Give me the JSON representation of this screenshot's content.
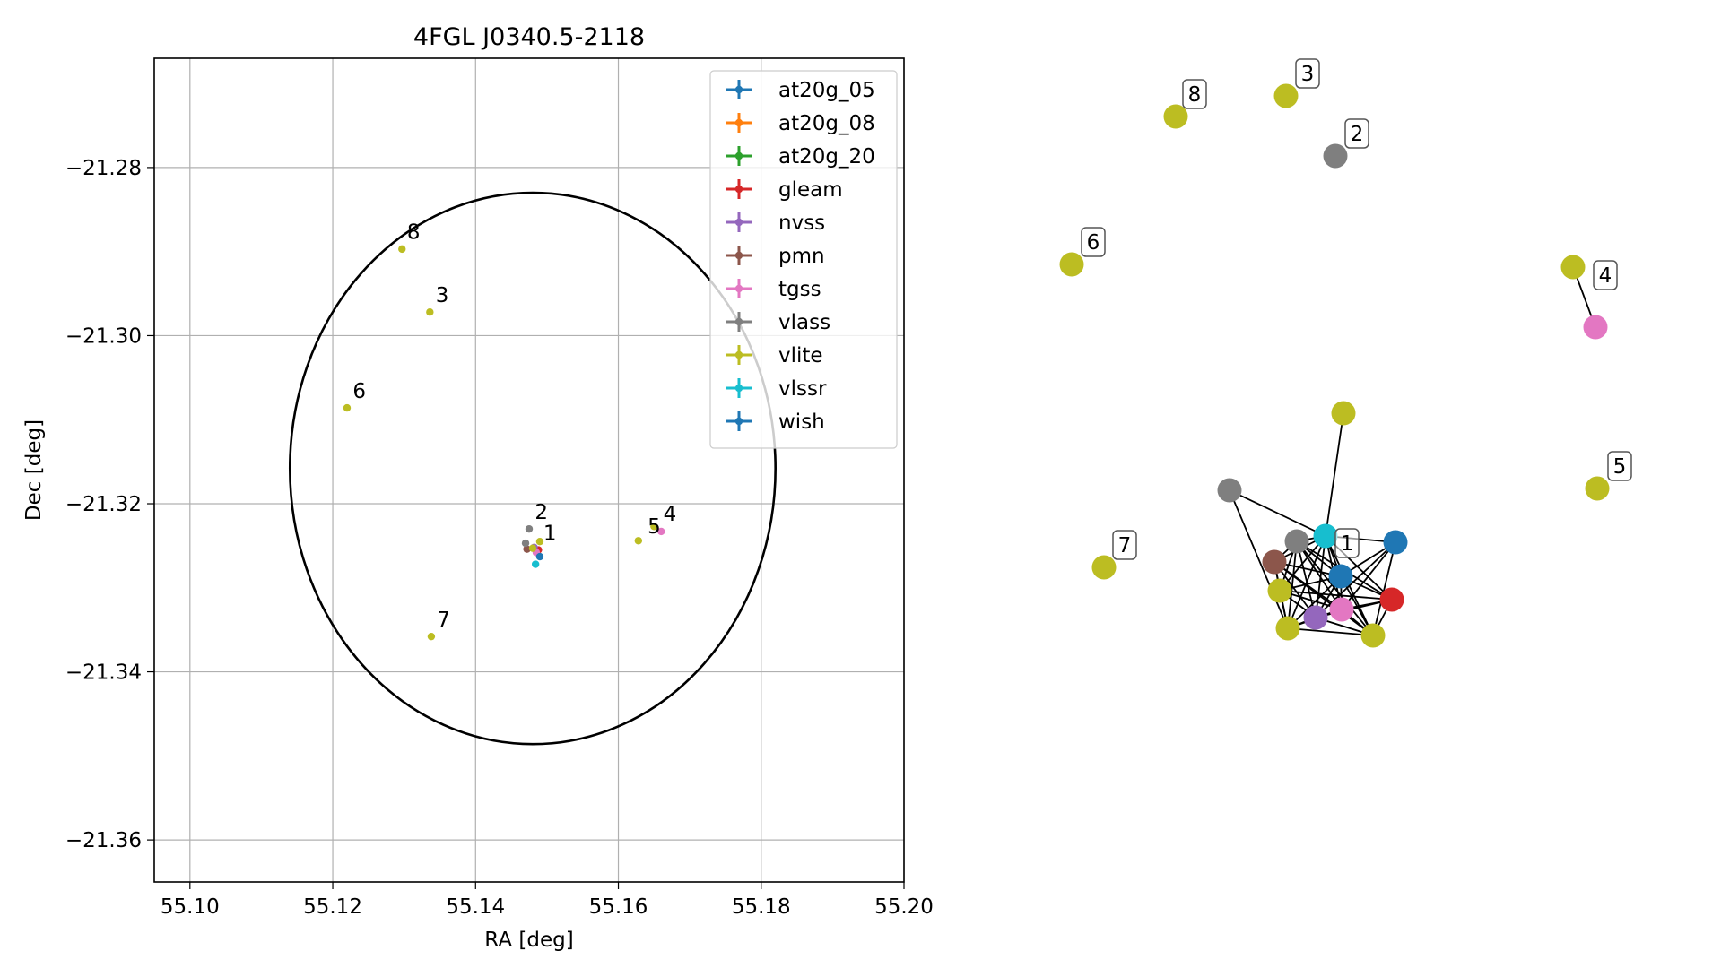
{
  "chart_data": [
    {
      "type": "scatter",
      "title": "4FGL J0340.5-2118",
      "xlabel": "RA [deg]",
      "ylabel": "Dec [deg]",
      "xlim": [
        55.095,
        55.2
      ],
      "ylim": [
        -21.365,
        -21.267
      ],
      "grid": true,
      "xticks": [
        55.1,
        55.12,
        55.14,
        55.16,
        55.18,
        55.2
      ],
      "xtick_labels": [
        "55.10",
        "55.12",
        "55.14",
        "55.16",
        "55.18",
        "55.20"
      ],
      "yticks": [
        -21.28,
        -21.3,
        -21.32,
        -21.34,
        -21.36
      ],
      "ytick_labels": [
        "−21.28",
        "−21.30",
        "−21.32",
        "−21.34",
        "−21.36"
      ],
      "legend_position": "top-right",
      "ellipse": {
        "center": [
          55.148,
          -21.3158
        ],
        "semi_axis_ra": 0.034,
        "semi_axis_dec": 0.0328,
        "color": "#000000"
      },
      "series": [
        {
          "name": "at20g_05",
          "color": "#1f77b4",
          "points": []
        },
        {
          "name": "at20g_08",
          "color": "#ff7f0e",
          "points": []
        },
        {
          "name": "at20g_20",
          "color": "#2ca02c",
          "points": []
        },
        {
          "name": "gleam",
          "color": "#d62728",
          "points": [
            [
              55.1488,
              -21.3255
            ]
          ]
        },
        {
          "name": "nvss",
          "color": "#9467bd",
          "points": [
            [
              55.1482,
              -21.3252
            ]
          ]
        },
        {
          "name": "pmn",
          "color": "#8c564b",
          "points": [
            [
              55.1472,
              -21.3254
            ]
          ]
        },
        {
          "name": "tgss",
          "color": "#e377c2",
          "points": [
            [
              55.166,
              -21.3233
            ],
            [
              55.1485,
              -21.3258
            ]
          ]
        },
        {
          "name": "vlass",
          "color": "#7f7f7f",
          "points": [
            [
              55.1475,
              -21.323
            ],
            [
              55.147,
              -21.3247
            ]
          ]
        },
        {
          "name": "vlite",
          "color": "#bcbd22",
          "points": [
            [
              55.149,
              -21.3245
            ],
            [
              55.148,
              -21.3253
            ],
            [
              55.1297,
              -21.2897
            ],
            [
              55.1336,
              -21.2972
            ],
            [
              55.122,
              -21.3086
            ],
            [
              55.1338,
              -21.3358
            ],
            [
              55.165,
              -21.3227
            ],
            [
              55.1628,
              -21.3244
            ]
          ]
        },
        {
          "name": "vlssr",
          "color": "#17becf",
          "points": [
            [
              55.1484,
              -21.3272
            ]
          ]
        },
        {
          "name": "wish",
          "color": "#1f77b4",
          "points": [
            [
              55.149,
              -21.3263
            ]
          ]
        }
      ],
      "annotations": [
        {
          "text": "1",
          "x": 55.1495,
          "y": -21.3243
        },
        {
          "text": "2",
          "x": 55.1483,
          "y": -21.3218
        },
        {
          "text": "3",
          "x": 55.1344,
          "y": -21.296
        },
        {
          "text": "4",
          "x": 55.1663,
          "y": -21.322
        },
        {
          "text": "5",
          "x": 55.1641,
          "y": -21.3235
        },
        {
          "text": "6",
          "x": 55.1228,
          "y": -21.3074
        },
        {
          "text": "7",
          "x": 55.1346,
          "y": -21.3346
        },
        {
          "text": "8",
          "x": 55.1304,
          "y": -21.2885
        }
      ]
    },
    {
      "type": "network",
      "nodes": [
        {
          "id": "n8",
          "color": "#bcbd22",
          "label": "8"
        },
        {
          "id": "n3",
          "color": "#bcbd22",
          "label": "3"
        },
        {
          "id": "n2",
          "color": "#7f7f7f",
          "label": "2"
        },
        {
          "id": "n6",
          "color": "#bcbd22",
          "label": "6"
        },
        {
          "id": "n4a",
          "color": "#bcbd22",
          "label": "4"
        },
        {
          "id": "n4b",
          "color": "#e377c2",
          "label": ""
        },
        {
          "id": "n5",
          "color": "#bcbd22",
          "label": "5"
        },
        {
          "id": "n7",
          "color": "#bcbd22",
          "label": "7"
        },
        {
          "id": "c_top",
          "color": "#bcbd22",
          "label": ""
        },
        {
          "id": "c_gray_far",
          "color": "#7f7f7f",
          "label": ""
        },
        {
          "id": "c_gray",
          "color": "#7f7f7f",
          "label": ""
        },
        {
          "id": "c_cyan",
          "color": "#17becf",
          "label": "1"
        },
        {
          "id": "c_blue_r",
          "color": "#1f77b4",
          "label": ""
        },
        {
          "id": "c_brown",
          "color": "#8c564b",
          "label": ""
        },
        {
          "id": "c_blue_m",
          "color": "#1f77b4",
          "label": ""
        },
        {
          "id": "c_olive_l",
          "color": "#bcbd22",
          "label": ""
        },
        {
          "id": "c_red",
          "color": "#d62728",
          "label": ""
        },
        {
          "id": "c_pink",
          "color": "#e377c2",
          "label": ""
        },
        {
          "id": "c_purple",
          "color": "#9467bd",
          "label": ""
        },
        {
          "id": "c_olive_b",
          "color": "#bcbd22",
          "label": ""
        },
        {
          "id": "c_olive_br",
          "color": "#bcbd22",
          "label": ""
        }
      ],
      "edges": [
        [
          "n4a",
          "n4b"
        ],
        [
          "c_top",
          "c_cyan"
        ],
        [
          "c_gray_far",
          "c_cyan"
        ],
        [
          "c_gray_far",
          "c_olive_b"
        ],
        [
          "c_gray",
          "c_cyan"
        ],
        [
          "c_gray",
          "c_blue_m"
        ],
        [
          "c_gray",
          "c_brown"
        ],
        [
          "c_gray",
          "c_olive_l"
        ],
        [
          "c_gray",
          "c_pink"
        ],
        [
          "c_gray",
          "c_purple"
        ],
        [
          "c_gray",
          "c_olive_b"
        ],
        [
          "c_gray",
          "c_olive_br"
        ],
        [
          "c_gray",
          "c_red"
        ],
        [
          "c_cyan",
          "c_blue_r"
        ],
        [
          "c_cyan",
          "c_blue_m"
        ],
        [
          "c_cyan",
          "c_brown"
        ],
        [
          "c_cyan",
          "c_olive_l"
        ],
        [
          "c_cyan",
          "c_pink"
        ],
        [
          "c_cyan",
          "c_purple"
        ],
        [
          "c_cyan",
          "c_olive_b"
        ],
        [
          "c_cyan",
          "c_olive_br"
        ],
        [
          "c_cyan",
          "c_red"
        ],
        [
          "c_blue_r",
          "c_blue_m"
        ],
        [
          "c_blue_r",
          "c_pink"
        ],
        [
          "c_blue_r",
          "c_purple"
        ],
        [
          "c_blue_r",
          "c_olive_br"
        ],
        [
          "c_brown",
          "c_blue_m"
        ],
        [
          "c_brown",
          "c_olive_l"
        ],
        [
          "c_brown",
          "c_pink"
        ],
        [
          "c_brown",
          "c_purple"
        ],
        [
          "c_brown",
          "c_olive_b"
        ],
        [
          "c_brown",
          "c_olive_br"
        ],
        [
          "c_blue_m",
          "c_olive_l"
        ],
        [
          "c_blue_m",
          "c_red"
        ],
        [
          "c_blue_m",
          "c_pink"
        ],
        [
          "c_blue_m",
          "c_purple"
        ],
        [
          "c_blue_m",
          "c_olive_b"
        ],
        [
          "c_blue_m",
          "c_olive_br"
        ],
        [
          "c_olive_l",
          "c_pink"
        ],
        [
          "c_olive_l",
          "c_purple"
        ],
        [
          "c_olive_l",
          "c_olive_b"
        ],
        [
          "c_olive_l",
          "c_red"
        ],
        [
          "c_red",
          "c_pink"
        ],
        [
          "c_red",
          "c_purple"
        ],
        [
          "c_red",
          "c_olive_br"
        ],
        [
          "c_pink",
          "c_purple"
        ],
        [
          "c_pink",
          "c_olive_b"
        ],
        [
          "c_pink",
          "c_olive_br"
        ],
        [
          "c_purple",
          "c_olive_b"
        ],
        [
          "c_purple",
          "c_olive_br"
        ],
        [
          "c_olive_b",
          "c_olive_br"
        ]
      ]
    }
  ]
}
